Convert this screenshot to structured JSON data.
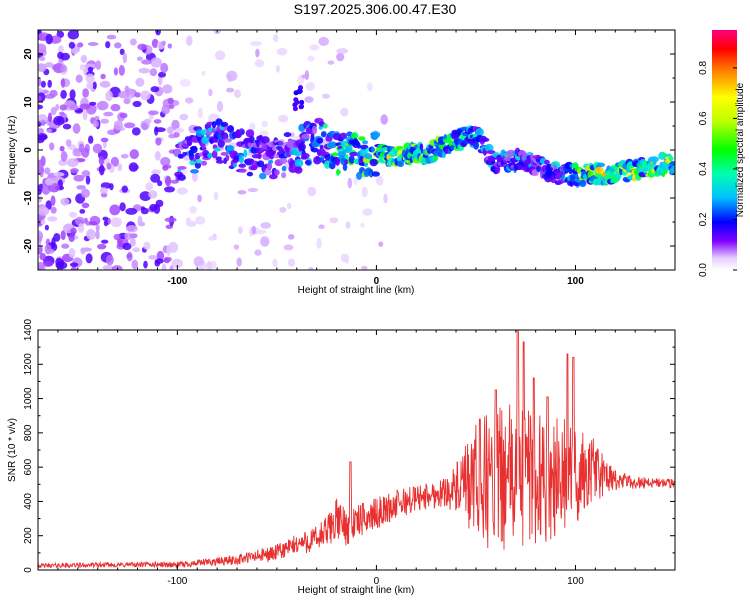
{
  "title": "S197.2025.306.00.47.E30",
  "colors": {
    "signal": "#e83030",
    "axis": "#000000"
  },
  "chart_data": [
    {
      "type": "heatmap",
      "title": "S197.2025.306.00.47.E30",
      "xlabel": "Height of straight line (km)",
      "ylabel": "Frequency (Hz)",
      "xlim": [
        -170,
        150
      ],
      "ylim": [
        -25,
        25
      ],
      "x_ticks": [
        {
          "value": -100,
          "label": "-100"
        },
        {
          "value": 0,
          "label": "0"
        },
        {
          "value": 100,
          "label": "100"
        }
      ],
      "y_ticks": [
        {
          "value": 20,
          "label": "20"
        },
        {
          "value": 10,
          "label": "10"
        },
        {
          "value": 0,
          "label": "0"
        },
        {
          "value": -10,
          "label": "-10"
        },
        {
          "value": -20,
          "label": "-20"
        }
      ],
      "colorbar": {
        "label": "Normalized spectral amplitude",
        "range": [
          0,
          0.95
        ],
        "ticks": [
          {
            "value": 0.0,
            "label": "0.0"
          },
          {
            "value": 0.2,
            "label": "0.2"
          },
          {
            "value": 0.4,
            "label": "0.4"
          },
          {
            "value": 0.6,
            "label": "0.6"
          },
          {
            "value": 0.8,
            "label": "0.8"
          }
        ]
      },
      "ridge": {
        "x": [
          -100,
          -90,
          -80,
          -70,
          -60,
          -50,
          -40,
          -30,
          -20,
          -10,
          0,
          10,
          20,
          30,
          40,
          50,
          60,
          70,
          80,
          90,
          100,
          110,
          120,
          130,
          140,
          150
        ],
        "y": [
          -3,
          0,
          2,
          0,
          -1,
          -2,
          0,
          2,
          -1,
          -1,
          -1,
          -1,
          -1,
          0,
          2,
          3,
          -3,
          -2,
          -3,
          -5,
          -5,
          -5,
          -5,
          -4,
          -3,
          -3
        ],
        "amplitude": [
          0.3,
          0.35,
          0.35,
          0.3,
          0.3,
          0.25,
          0.3,
          0.35,
          0.5,
          0.55,
          0.6,
          0.8,
          0.65,
          0.6,
          0.45,
          0.4,
          0.35,
          0.35,
          0.3,
          0.35,
          0.5,
          0.75,
          0.85,
          0.7,
          0.75,
          0.7
        ]
      }
    },
    {
      "type": "line",
      "xlabel": "Height of straight line (km)",
      "ylabel": "SNR (10 * v/v)",
      "xlim": [
        -170,
        150
      ],
      "ylim": [
        0,
        1400
      ],
      "x_ticks": [
        {
          "value": -100,
          "label": "-100"
        },
        {
          "value": 0,
          "label": "0"
        },
        {
          "value": 100,
          "label": "100"
        }
      ],
      "y_ticks": [
        {
          "value": 0,
          "label": "0"
        },
        {
          "value": 200,
          "label": "200"
        },
        {
          "value": 400,
          "label": "400"
        },
        {
          "value": 600,
          "label": "600"
        },
        {
          "value": 800,
          "label": "800"
        },
        {
          "value": 1000,
          "label": "1000"
        },
        {
          "value": 1200,
          "label": "1200"
        },
        {
          "value": 1400,
          "label": "1400"
        }
      ],
      "series": [
        {
          "name": "SNR",
          "x": [
            -170,
            -150,
            -130,
            -110,
            -100,
            -90,
            -80,
            -70,
            -60,
            -50,
            -40,
            -30,
            -25,
            -20,
            -15,
            -10,
            0,
            10,
            20,
            30,
            35,
            40,
            45,
            50,
            55,
            60,
            65,
            70,
            75,
            80,
            85,
            90,
            95,
            100,
            105,
            110,
            115,
            120,
            130,
            140,
            150
          ],
          "y": [
            25,
            28,
            30,
            32,
            30,
            40,
            50,
            60,
            80,
            100,
            150,
            180,
            220,
            300,
            250,
            280,
            330,
            380,
            420,
            440,
            460,
            470,
            480,
            500,
            520,
            520,
            540,
            540,
            560,
            540,
            540,
            550,
            560,
            540,
            560,
            580,
            540,
            520,
            510,
            510,
            500
          ],
          "spread": [
            12,
            14,
            14,
            16,
            18,
            20,
            25,
            30,
            40,
            50,
            60,
            80,
            100,
            120,
            110,
            100,
            90,
            90,
            80,
            80,
            90,
            150,
            250,
            350,
            400,
            420,
            420,
            450,
            420,
            400,
            380,
            360,
            330,
            300,
            260,
            200,
            100,
            60,
            40,
            30,
            30
          ]
        }
      ],
      "peaks": [
        {
          "x": -13,
          "y": 630
        },
        {
          "x": 52,
          "y": 880
        },
        {
          "x": 60,
          "y": 1050
        },
        {
          "x": 71,
          "y": 1400
        },
        {
          "x": 74,
          "y": 1330
        },
        {
          "x": 79,
          "y": 1120
        },
        {
          "x": 86,
          "y": 1010
        },
        {
          "x": 96,
          "y": 1260
        },
        {
          "x": 99,
          "y": 1240
        },
        {
          "x": 115,
          "y": 600
        }
      ]
    }
  ]
}
